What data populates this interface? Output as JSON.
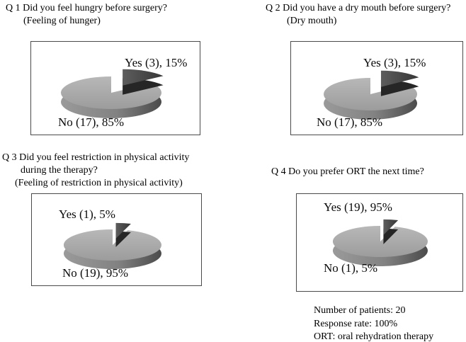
{
  "figure": {
    "background": "#ffffff",
    "kind": "survey-pie-figure"
  },
  "panels": [
    {
      "id": "q1",
      "title_lines": [
        "Q 1  Did you feel hungry before surgery?",
        "(Feeling of hunger)"
      ],
      "yes_label": "Yes (3), 15%",
      "no_label": "No (17), 85%"
    },
    {
      "id": "q2",
      "title_lines": [
        "Q 2  Did you have a dry mouth before surgery?",
        "(Dry mouth)"
      ],
      "yes_label": "Yes (3), 15%",
      "no_label": "No (17), 85%"
    },
    {
      "id": "q3",
      "title_lines": [
        "Q 3  Did you feel restriction in physical activity",
        "during the therapy?",
        "(Feeling of restriction in physical activity)"
      ],
      "yes_label": "Yes (1), 5%",
      "no_label": "No (19), 95%"
    },
    {
      "id": "q4",
      "title_lines": [
        "Q 4  Do you prefer ORT the next time?"
      ],
      "yes_label": "Yes (19), 95%",
      "no_label": "No (1), 5%"
    }
  ],
  "notes": {
    "lines": [
      "Number of patients: 20",
      "Response rate: 100%",
      "ORT: oral rehydration therapy"
    ]
  },
  "chart_data": [
    {
      "type": "pie",
      "style": "3d-exploded",
      "title": "Q 1 Did you feel hungry before surgery? (Feeling of hunger)",
      "start_angle_deg": -90,
      "direction": "clockwise",
      "slices": [
        {
          "label": "Yes",
          "count": 3,
          "pct": 15,
          "color_role": "dark",
          "exploded": true
        },
        {
          "label": "No",
          "count": 17,
          "pct": 85,
          "color_role": "light",
          "exploded": false
        }
      ]
    },
    {
      "type": "pie",
      "style": "3d-exploded",
      "title": "Q 2 Did you have a dry mouth before surgery? (Dry mouth)",
      "start_angle_deg": -90,
      "direction": "clockwise",
      "slices": [
        {
          "label": "Yes",
          "count": 3,
          "pct": 15,
          "color_role": "dark",
          "exploded": true
        },
        {
          "label": "No",
          "count": 17,
          "pct": 85,
          "color_role": "light",
          "exploded": false
        }
      ]
    },
    {
      "type": "pie",
      "style": "3d-exploded",
      "title": "Q 3 Did you feel restriction in physical activity during the therapy? (Feeling of restriction in physical activity)",
      "start_angle_deg": -90,
      "direction": "clockwise",
      "slices": [
        {
          "label": "Yes",
          "count": 1,
          "pct": 5,
          "color_role": "dark",
          "exploded": true
        },
        {
          "label": "No",
          "count": 19,
          "pct": 95,
          "color_role": "light",
          "exploded": false
        }
      ]
    },
    {
      "type": "pie",
      "style": "3d-exploded",
      "title": "Q 4 Do you prefer ORT the next time?",
      "start_angle_deg": -90,
      "direction": "clockwise",
      "slices": [
        {
          "label": "No",
          "count": 1,
          "pct": 5,
          "color_role": "dark",
          "exploded": true
        },
        {
          "label": "Yes",
          "count": 19,
          "pct": 95,
          "color_role": "light",
          "exploded": false
        }
      ]
    }
  ],
  "palette": {
    "light_top_hi": "#b8b8b8",
    "light_top_lo": "#9c9c9c",
    "light_side_left": "#9a9a9a",
    "light_side_mid": "#828282",
    "light_side_right": "#4b4b4b",
    "dark_top_left": "#5d5d5d",
    "dark_top_right": "#373737",
    "dark_side": "#262626",
    "box_border": "#4a4a4a",
    "text": "#000000"
  }
}
